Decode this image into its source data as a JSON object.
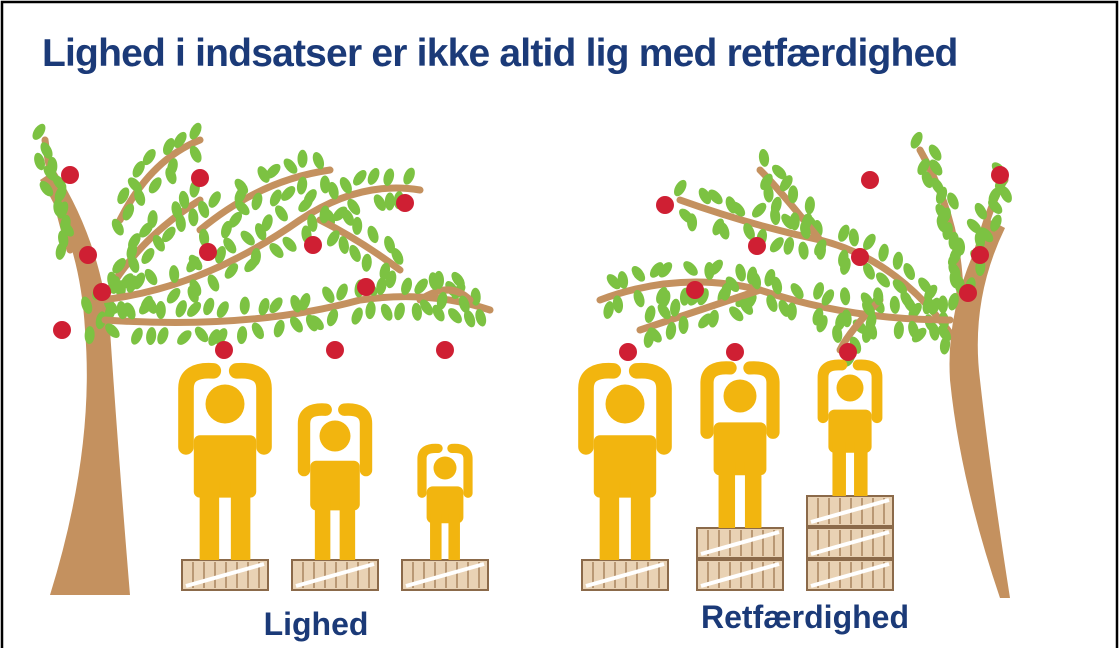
{
  "title": "Lighed i indsatser er ikke altid lig med retfærdighed",
  "labels": {
    "left": "Lighed",
    "right": "Retfærdighed"
  }
}
